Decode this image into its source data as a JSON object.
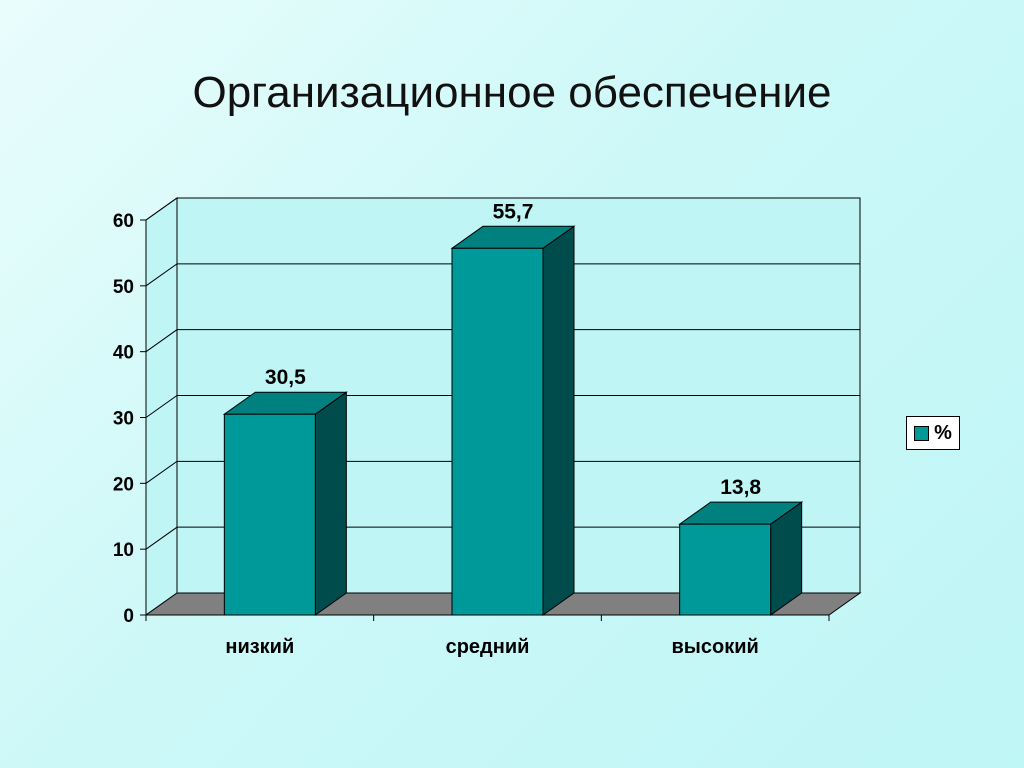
{
  "slide": {
    "title": "Организационное обеспечение"
  },
  "chart_data": {
    "type": "bar",
    "categories": [
      "низкий",
      "средний",
      "высокий"
    ],
    "series": [
      {
        "name": "%",
        "values": [
          30.5,
          55.7,
          13.8
        ]
      }
    ],
    "value_labels": [
      "30,5",
      "55,7",
      "13,8"
    ],
    "ylim": [
      0,
      60
    ],
    "yticks": [
      "0",
      "10",
      "20",
      "30",
      "40",
      "50",
      "60"
    ],
    "ytick_values": [
      0,
      10,
      20,
      30,
      40,
      50,
      60
    ],
    "grid": true,
    "legend_position": "right",
    "style": "3d",
    "colors": {
      "bar_front": "#009999",
      "bar_top": "#00807f",
      "bar_side": "#004c4c",
      "floor": "#808080",
      "wall": "#bff5f5"
    }
  }
}
